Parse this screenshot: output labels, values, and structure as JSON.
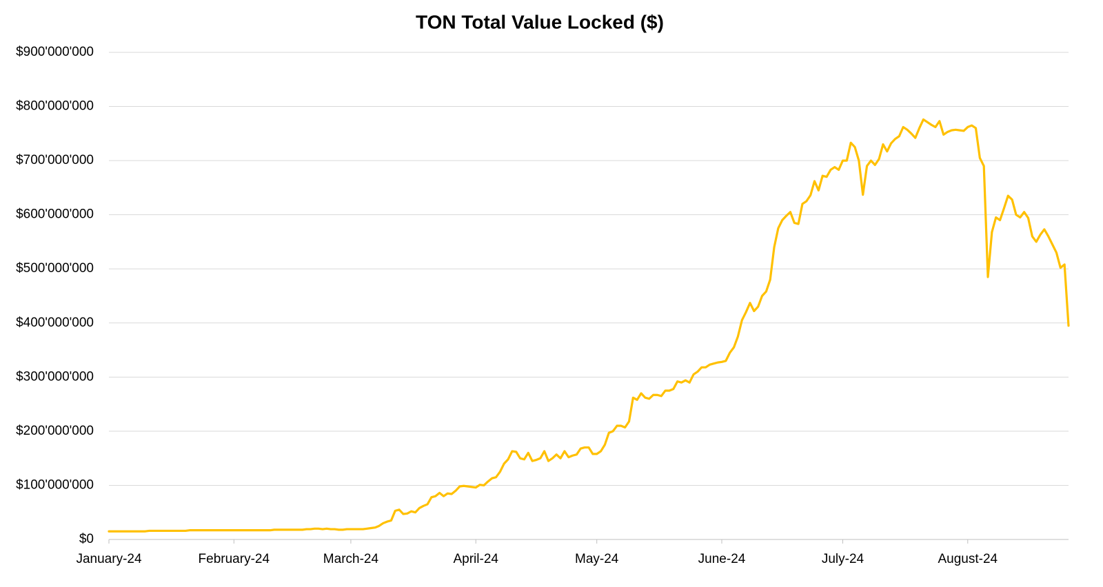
{
  "chart_data": {
    "type": "line",
    "title": "TON Total Value Locked ($)",
    "color": "#ffc000",
    "grid": true,
    "ylim": [
      0,
      900000000
    ],
    "yticks": [
      {
        "value": 0,
        "label": "$0"
      },
      {
        "value": 100000000,
        "label": "$100'000'000"
      },
      {
        "value": 200000000,
        "label": "$200'000'000"
      },
      {
        "value": 300000000,
        "label": "$300'000'000"
      },
      {
        "value": 400000000,
        "label": "$400'000'000"
      },
      {
        "value": 500000000,
        "label": "$500'000'000"
      },
      {
        "value": 600000000,
        "label": "$600'000'000"
      },
      {
        "value": 700000000,
        "label": "$700'000'000"
      },
      {
        "value": 800000000,
        "label": "$800'000'000"
      },
      {
        "value": 900000000,
        "label": "$900'000'000"
      }
    ],
    "categories": [
      "January-24",
      null,
      null,
      null,
      null,
      null,
      null,
      null,
      null,
      null,
      null,
      null,
      null,
      null,
      null,
      null,
      null,
      null,
      null,
      null,
      null,
      null,
      null,
      null,
      null,
      null,
      null,
      null,
      null,
      null,
      null,
      "February-24",
      null,
      null,
      null,
      null,
      null,
      null,
      null,
      null,
      null,
      null,
      null,
      null,
      null,
      null,
      null,
      null,
      null,
      null,
      null,
      null,
      null,
      null,
      null,
      null,
      null,
      null,
      null,
      null,
      "March-24",
      null,
      null,
      null,
      null,
      null,
      null,
      null,
      null,
      null,
      null,
      null,
      null,
      null,
      null,
      null,
      null,
      null,
      null,
      null,
      null,
      null,
      null,
      null,
      null,
      null,
      null,
      null,
      null,
      null,
      null,
      "April-24",
      null,
      null,
      null,
      null,
      null,
      null,
      null,
      null,
      null,
      null,
      null,
      null,
      null,
      null,
      null,
      null,
      null,
      null,
      null,
      null,
      null,
      null,
      null,
      null,
      null,
      null,
      null,
      null,
      null,
      "May-24",
      null,
      null,
      null,
      null,
      null,
      null,
      null,
      null,
      null,
      null,
      null,
      null,
      null,
      null,
      null,
      null,
      null,
      null,
      null,
      null,
      null,
      null,
      null,
      null,
      null,
      null,
      null,
      null,
      null,
      null,
      "June-24",
      null,
      null,
      null,
      null,
      null,
      null,
      null,
      null,
      null,
      null,
      null,
      null,
      null,
      null,
      null,
      null,
      null,
      null,
      null,
      null,
      null,
      null,
      null,
      null,
      null,
      null,
      null,
      null,
      null,
      "July-24",
      null,
      null,
      null,
      null,
      null,
      null,
      null,
      null,
      null,
      null,
      null,
      null,
      null,
      null,
      null,
      null,
      null,
      null,
      null,
      null,
      null,
      null,
      null,
      null,
      null,
      null,
      null,
      null,
      null,
      null,
      "August-24",
      null,
      null,
      null,
      null,
      null,
      null,
      null,
      null,
      null,
      null,
      null,
      null,
      null,
      null,
      null,
      null,
      null,
      null,
      null,
      null,
      null,
      null,
      null,
      null,
      null
    ],
    "values": [
      15000000,
      15000000,
      15000000,
      15000000,
      15000000,
      15000000,
      15000000,
      15000000,
      15000000,
      15000000,
      16000000,
      16000000,
      16000000,
      16000000,
      16000000,
      16000000,
      16000000,
      16000000,
      16000000,
      16000000,
      17000000,
      17000000,
      17000000,
      17000000,
      17000000,
      17000000,
      17000000,
      17000000,
      17000000,
      17000000,
      17000000,
      17000000,
      17000000,
      17000000,
      17000000,
      17000000,
      17000000,
      17000000,
      17000000,
      17000000,
      17000000,
      18000000,
      18000000,
      18000000,
      18000000,
      18000000,
      18000000,
      18000000,
      18000000,
      19000000,
      19000000,
      20000000,
      20000000,
      19000000,
      20000000,
      19000000,
      19000000,
      18000000,
      18000000,
      19000000,
      19000000,
      19000000,
      19000000,
      19000000,
      20000000,
      21000000,
      22000000,
      25000000,
      30000000,
      33000000,
      35000000,
      53000000,
      55000000,
      47000000,
      48000000,
      52000000,
      50000000,
      58000000,
      62000000,
      65000000,
      78000000,
      80000000,
      86000000,
      80000000,
      85000000,
      84000000,
      90000000,
      98000000,
      99000000,
      98000000,
      97000000,
      96000000,
      101000000,
      100000000,
      107000000,
      113000000,
      115000000,
      125000000,
      140000000,
      148000000,
      163000000,
      162000000,
      150000000,
      148000000,
      160000000,
      145000000,
      147000000,
      150000000,
      163000000,
      145000000,
      150000000,
      157000000,
      150000000,
      163000000,
      152000000,
      155000000,
      157000000,
      168000000,
      170000000,
      170000000,
      158000000,
      158000000,
      163000000,
      175000000,
      197000000,
      200000000,
      210000000,
      210000000,
      207000000,
      218000000,
      262000000,
      258000000,
      270000000,
      262000000,
      260000000,
      267000000,
      267000000,
      265000000,
      275000000,
      275000000,
      278000000,
      292000000,
      290000000,
      294000000,
      290000000,
      305000000,
      310000000,
      318000000,
      318000000,
      323000000,
      325000000,
      327000000,
      328000000,
      330000000,
      345000000,
      355000000,
      375000000,
      405000000,
      420000000,
      437000000,
      422000000,
      430000000,
      450000000,
      458000000,
      480000000,
      540000000,
      575000000,
      590000000,
      598000000,
      605000000,
      585000000,
      583000000,
      620000000,
      625000000,
      636000000,
      662000000,
      645000000,
      672000000,
      670000000,
      683000000,
      688000000,
      683000000,
      700000000,
      700000000,
      733000000,
      725000000,
      700000000,
      637000000,
      690000000,
      700000000,
      692000000,
      703000000,
      730000000,
      717000000,
      732000000,
      740000000,
      745000000,
      762000000,
      757000000,
      750000000,
      742000000,
      760000000,
      776000000,
      771000000,
      766000000,
      762000000,
      773000000,
      748000000,
      753000000,
      756000000,
      757000000,
      756000000,
      755000000,
      762000000,
      765000000,
      760000000,
      705000000,
      690000000,
      485000000,
      568000000,
      595000000,
      590000000,
      612000000,
      635000000,
      628000000,
      600000000,
      595000000,
      605000000,
      594000000,
      560000000,
      550000000,
      563000000,
      573000000,
      560000000,
      545000000,
      530000000,
      502000000,
      508000000,
      395000000
    ]
  }
}
